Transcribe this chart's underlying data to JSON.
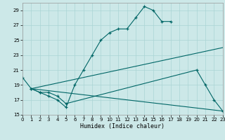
{
  "xlabel": "Humidex (Indice chaleur)",
  "bg_color": "#cce8e8",
  "grid_color": "#aad4d4",
  "line_color": "#006666",
  "xlim": [
    0,
    23
  ],
  "ylim": [
    15,
    30
  ],
  "yticks": [
    15,
    17,
    19,
    21,
    23,
    25,
    27,
    29
  ],
  "xticks": [
    0,
    1,
    2,
    3,
    4,
    5,
    6,
    7,
    8,
    9,
    10,
    11,
    12,
    13,
    14,
    15,
    16,
    17,
    18,
    19,
    20,
    21,
    22,
    23
  ],
  "line1_x": [
    0,
    1,
    2,
    3,
    4,
    5,
    6,
    7,
    8,
    9,
    10,
    11,
    12,
    13,
    14,
    15,
    16,
    17
  ],
  "line1_y": [
    20.0,
    18.5,
    18.0,
    17.5,
    17.0,
    16.0,
    19.0,
    21.0,
    23.0,
    25.0,
    26.0,
    26.5,
    26.5,
    28.0,
    29.5,
    29.0,
    27.5,
    27.5
  ],
  "line2_x": [
    1,
    2,
    3,
    4,
    5,
    20,
    21,
    22,
    23
  ],
  "line2_y": [
    18.5,
    18.0,
    18.0,
    17.5,
    16.5,
    21.0,
    19.0,
    17.0,
    15.5
  ],
  "line3_x": [
    1,
    23
  ],
  "line3_y": [
    18.5,
    24.0
  ],
  "line4_x": [
    1,
    23
  ],
  "line4_y": [
    18.5,
    15.5
  ]
}
